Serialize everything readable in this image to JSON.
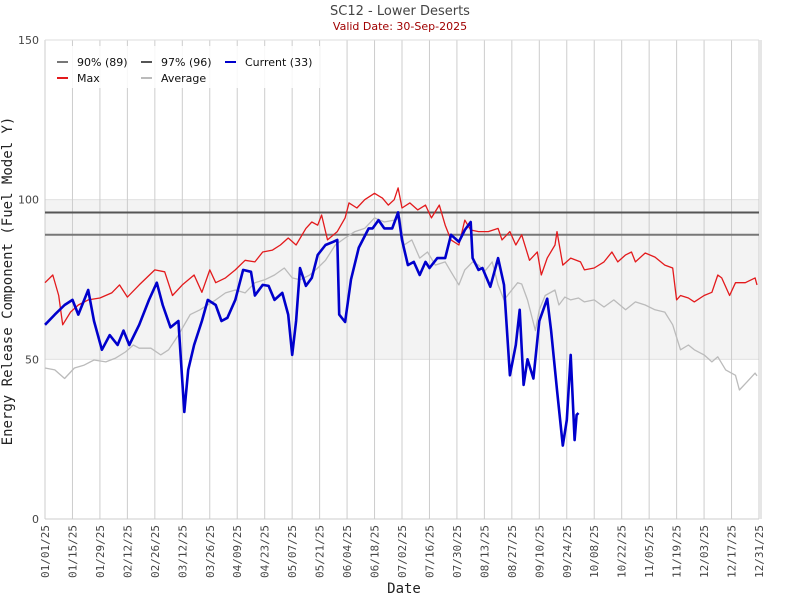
{
  "chart_data": {
    "type": "line",
    "title": "SC12 - Lower Deserts",
    "subtitle": "Valid Date: 30-Sep-2025",
    "xlabel": "Date",
    "ylabel": "Energy Release Component (Fuel Model Y)",
    "x_unit": "day offset from 01/01/25",
    "xlim": [
      0,
      364
    ],
    "ylim": [
      0,
      150
    ],
    "yticks": [
      "0",
      "50",
      "100",
      "150"
    ],
    "ytick_values": [
      0,
      50,
      100,
      150
    ],
    "xticks": [
      "01/01/25",
      "01/15/25",
      "01/29/25",
      "02/12/25",
      "02/26/25",
      "03/12/25",
      "03/26/25",
      "04/09/25",
      "04/23/25",
      "05/07/25",
      "05/21/25",
      "06/04/25",
      "06/18/25",
      "07/02/25",
      "07/16/25",
      "07/30/25",
      "08/13/25",
      "08/27/25",
      "09/10/25",
      "09/24/25",
      "10/08/25",
      "10/22/25",
      "11/05/25",
      "11/19/25",
      "12/03/25",
      "12/17/25",
      "12/31/25"
    ],
    "grid": "vertical",
    "shaded_band": [
      50,
      100
    ],
    "legend_placement": "top-left",
    "legend": [
      {
        "label": "90% (89)",
        "color": "#777777"
      },
      {
        "label": "97% (96)",
        "color": "#555555"
      },
      {
        "label": "Current (33)",
        "color": "#0000cc"
      },
      {
        "label": "Max",
        "color": "#e31a1c"
      },
      {
        "label": "Average",
        "color": "#bbbbbb"
      }
    ],
    "reference_lines": [
      {
        "name": "90%",
        "value": 89,
        "color": "#777777"
      },
      {
        "name": "97%",
        "value": 96,
        "color": "#555555"
      }
    ],
    "series": [
      {
        "name": "Max",
        "color": "#e31a1c",
        "x": [
          0,
          4,
          7,
          9,
          13,
          17,
          22,
          28,
          34,
          38,
          42,
          48,
          56,
          61,
          65,
          70,
          76,
          80,
          84,
          87,
          92,
          97,
          102,
          107,
          111,
          116,
          120,
          124,
          128,
          133,
          136,
          139,
          141,
          144,
          149,
          153,
          155,
          159,
          163,
          168,
          172,
          175,
          178,
          180,
          182,
          186,
          190,
          194,
          197,
          201,
          204,
          207,
          211,
          214,
          217,
          221,
          226,
          231,
          233,
          237,
          240,
          243,
          247,
          251,
          253,
          256,
          260,
          261,
          264,
          268,
          273,
          275,
          280,
          285,
          289,
          292,
          296,
          299,
          301,
          306,
          311,
          316,
          320,
          322,
          324,
          328,
          331,
          336,
          340,
          343,
          345,
          349,
          352,
          357,
          362,
          363
        ],
        "values": [
          74,
          76.4,
          70,
          60.8,
          64.8,
          67,
          68.6,
          69.2,
          70.8,
          73.3,
          69.5,
          73.3,
          78,
          77.4,
          70,
          73.3,
          76.4,
          71,
          78,
          74,
          75.5,
          78,
          81,
          80.5,
          83.6,
          84.2,
          85.8,
          88,
          85.8,
          91,
          93,
          92,
          95.2,
          87.4,
          90,
          94.3,
          99,
          97.4,
          100,
          102,
          100.5,
          98.3,
          100,
          103.7,
          97.4,
          99,
          96.8,
          98.3,
          94.3,
          98.3,
          92,
          87.4,
          85.8,
          93.6,
          90.5,
          90,
          90,
          91,
          87.4,
          90,
          85.8,
          89,
          81,
          83.6,
          76.4,
          81.7,
          85.8,
          90,
          79.5,
          81.7,
          80.5,
          78,
          78.6,
          80.5,
          83.6,
          80.5,
          82.7,
          83.6,
          80.5,
          83.3,
          82,
          79.5,
          78.6,
          68.6,
          70,
          69.2,
          68,
          70,
          71,
          76.4,
          75.5,
          70,
          74,
          74,
          75.5,
          73.3
        ]
      },
      {
        "name": "Average",
        "color": "#bbbbbb",
        "x": [
          0,
          5,
          10,
          15,
          20,
          25,
          31,
          36,
          41,
          45,
          48,
          54,
          59,
          63,
          68,
          74,
          79,
          87,
          92,
          97,
          102,
          107,
          112,
          117,
          122,
          126,
          130,
          135,
          139,
          143,
          148,
          153,
          158,
          163,
          168,
          173,
          178,
          181,
          183,
          187,
          191,
          195,
          199,
          204,
          207,
          211,
          214,
          218,
          221,
          224,
          228,
          231,
          234,
          238,
          241,
          243,
          246,
          250,
          252,
          255,
          260,
          262,
          265,
          268,
          272,
          275,
          280,
          285,
          290,
          296,
          301,
          306,
          311,
          316,
          320,
          324,
          328,
          331,
          336,
          340,
          343,
          347,
          352,
          354,
          358,
          362,
          363
        ],
        "values": [
          47.3,
          46.7,
          44,
          47.3,
          48.2,
          49.8,
          49.2,
          50.4,
          52.3,
          54.5,
          53.5,
          53.5,
          51.4,
          53,
          57.6,
          64,
          65.5,
          68.6,
          70.8,
          71.7,
          70.8,
          74,
          74.9,
          76.4,
          78.6,
          75.5,
          74.9,
          76.4,
          78.6,
          81,
          85.8,
          88,
          90,
          91,
          94.3,
          93,
          93.6,
          94.3,
          85.8,
          87.4,
          81.7,
          83.6,
          79.5,
          80.5,
          77.4,
          73.3,
          78,
          80.5,
          79.5,
          77.4,
          80.5,
          73.3,
          68.6,
          71.7,
          74,
          73.6,
          68.6,
          59,
          65.5,
          70,
          71.7,
          67,
          69.5,
          68.6,
          69.2,
          68,
          68.6,
          66.4,
          68.6,
          65.5,
          68,
          67,
          65.5,
          64.8,
          60.8,
          53,
          54.5,
          53,
          51.4,
          49.2,
          50.8,
          46.7,
          45,
          40.4,
          43,
          45.7,
          44.8
        ]
      },
      {
        "name": "Current",
        "color": "#0000cc",
        "x": [
          0,
          5,
          10,
          14,
          17,
          22,
          25,
          29,
          33,
          37,
          40,
          43,
          48,
          53,
          57,
          60,
          64,
          68,
          71,
          73,
          76,
          80,
          83,
          87,
          90,
          93,
          97,
          101,
          105,
          107,
          111,
          114,
          117,
          121,
          124,
          126,
          128,
          130,
          133,
          136,
          139,
          143,
          147,
          149,
          150,
          153,
          156,
          160,
          165,
          167,
          170,
          173,
          177,
          180,
          182,
          185,
          188,
          191,
          194,
          196,
          200,
          204,
          207,
          211,
          214,
          217,
          218,
          221,
          223,
          227,
          231,
          234,
          237,
          240,
          242,
          244,
          246,
          249,
          252,
          256,
          258,
          261,
          264,
          266,
          268,
          270,
          271,
          272
        ],
        "values": [
          60.8,
          64,
          67,
          68.6,
          64,
          71.7,
          62,
          53,
          57.6,
          54.5,
          59,
          54.5,
          60.8,
          68.6,
          74,
          67,
          60,
          62,
          33.5,
          46.7,
          54.5,
          62,
          68.6,
          67,
          62,
          63,
          68.6,
          78,
          77.4,
          70,
          73.3,
          73,
          68.6,
          70.8,
          64,
          51.4,
          62,
          78.6,
          73,
          75.5,
          82.7,
          85.8,
          86.8,
          87.4,
          64,
          61.7,
          75,
          85,
          91,
          91,
          93.6,
          91,
          91,
          96,
          87.4,
          79.5,
          80.5,
          76.4,
          80.5,
          78.6,
          81.7,
          81.7,
          89,
          86.8,
          90.5,
          93,
          81.7,
          78,
          78.6,
          72.7,
          81.7,
          73.3,
          45,
          54.5,
          65.5,
          42,
          50,
          44,
          62,
          69,
          59,
          40.4,
          23,
          31,
          51.4,
          24.7,
          32.6,
          33.2
        ]
      }
    ]
  }
}
